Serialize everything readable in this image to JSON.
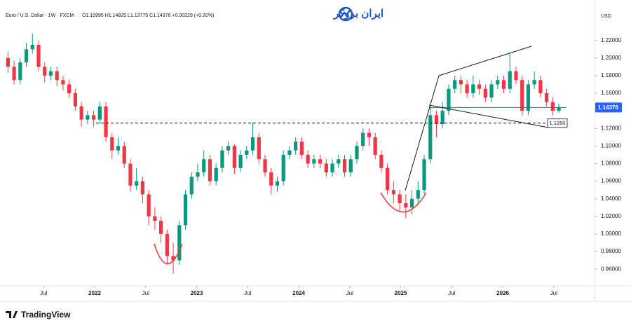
{
  "chart_data": {
    "type": "candlestick",
    "title": "Euro / U.S. Dollar · 1W · FXCM",
    "header_values": "O1.13995 H1.14825 L1.13775 C1.14376 +0.00229 (+0.20%)",
    "brand": "ایران بروکر",
    "currency": "USD",
    "source": "TradingView",
    "up_color": "#089981",
    "down_color": "#f23645",
    "grid": false,
    "x": [
      2021.15,
      2021.21,
      2021.27,
      2021.33,
      2021.39,
      2021.45,
      2021.51,
      2021.57,
      2021.63,
      2021.69,
      2021.75,
      2021.81,
      2021.87,
      2021.93,
      2021.99,
      2022.05,
      2022.11,
      2022.17,
      2022.23,
      2022.29,
      2022.35,
      2022.41,
      2022.47,
      2022.53,
      2022.59,
      2022.65,
      2022.71,
      2022.77,
      2022.83,
      2022.89,
      2022.95,
      2023.01,
      2023.07,
      2023.13,
      2023.19,
      2023.25,
      2023.31,
      2023.37,
      2023.43,
      2023.49,
      2023.55,
      2023.61,
      2023.67,
      2023.73,
      2023.79,
      2023.85,
      2023.91,
      2023.97,
      2024.03,
      2024.09,
      2024.15,
      2024.21,
      2024.27,
      2024.33,
      2024.39,
      2024.45,
      2024.51,
      2024.57,
      2024.63,
      2024.69,
      2024.75,
      2024.81,
      2024.87,
      2024.93,
      2024.99,
      2025.05,
      2025.11,
      2025.17,
      2025.23,
      2025.29,
      2025.35,
      2025.41,
      2025.47,
      2025.53,
      2025.59,
      2025.65,
      2025.71,
      2025.77,
      2025.83,
      2025.89,
      2025.95,
      2026.01,
      2026.07,
      2026.13,
      2026.19,
      2026.25,
      2026.31,
      2026.37,
      2026.43,
      2026.49,
      2026.55
    ],
    "open": [
      1.2,
      1.19,
      1.175,
      1.195,
      1.21,
      1.215,
      1.19,
      1.18,
      1.185,
      1.175,
      1.17,
      1.16,
      1.145,
      1.13,
      1.135,
      1.13,
      1.145,
      1.11,
      1.095,
      1.1,
      1.08,
      1.055,
      1.06,
      1.045,
      1.02,
      1.015,
      1.0,
      0.975,
      0.97,
      1.01,
      1.045,
      1.065,
      1.07,
      1.085,
      1.06,
      1.075,
      1.095,
      1.1,
      1.075,
      1.09,
      1.095,
      1.11,
      1.085,
      1.07,
      1.055,
      1.06,
      1.09,
      1.095,
      1.105,
      1.09,
      1.08,
      1.085,
      1.08,
      1.07,
      1.08,
      1.085,
      1.07,
      1.085,
      1.1,
      1.115,
      1.11,
      1.09,
      1.075,
      1.05,
      1.045,
      1.035,
      1.03,
      1.04,
      1.05,
      1.085,
      1.135,
      1.125,
      1.14,
      1.165,
      1.175,
      1.17,
      1.16,
      1.17,
      1.165,
      1.155,
      1.17,
      1.175,
      1.165,
      1.185,
      1.175,
      1.14,
      1.17,
      1.175,
      1.16,
      1.15,
      1.13995
    ],
    "high": [
      1.207,
      1.197,
      1.2,
      1.217,
      1.228,
      1.22,
      1.195,
      1.19,
      1.19,
      1.18,
      1.175,
      1.165,
      1.15,
      1.14,
      1.14,
      1.15,
      1.15,
      1.115,
      1.11,
      1.105,
      1.085,
      1.075,
      1.065,
      1.05,
      1.03,
      1.02,
      1.005,
      0.99,
      1.015,
      1.05,
      1.07,
      1.08,
      1.095,
      1.09,
      1.08,
      1.1,
      1.105,
      1.102,
      1.095,
      1.1,
      1.127,
      1.115,
      1.09,
      1.075,
      1.065,
      1.095,
      1.1,
      1.11,
      1.11,
      1.095,
      1.09,
      1.09,
      1.085,
      1.085,
      1.09,
      1.09,
      1.09,
      1.105,
      1.12,
      1.12,
      1.115,
      1.095,
      1.08,
      1.06,
      1.05,
      1.045,
      1.05,
      1.06,
      1.09,
      1.145,
      1.14,
      1.15,
      1.17,
      1.18,
      1.18,
      1.175,
      1.18,
      1.175,
      1.17,
      1.175,
      1.18,
      1.18,
      1.205,
      1.19,
      1.18,
      1.175,
      1.185,
      1.18,
      1.165,
      1.155,
      1.14825
    ],
    "low": [
      1.183,
      1.17,
      1.17,
      1.19,
      1.205,
      1.185,
      1.172,
      1.175,
      1.168,
      1.163,
      1.155,
      1.14,
      1.122,
      1.125,
      1.122,
      1.125,
      1.105,
      1.085,
      1.09,
      1.075,
      1.048,
      1.05,
      1.035,
      1.01,
      1.005,
      0.99,
      0.965,
      0.955,
      0.965,
      1.005,
      1.04,
      1.06,
      1.065,
      1.055,
      1.055,
      1.07,
      1.09,
      1.068,
      1.07,
      1.085,
      1.09,
      1.08,
      1.065,
      1.045,
      1.048,
      1.055,
      1.085,
      1.09,
      1.085,
      1.075,
      1.075,
      1.075,
      1.065,
      1.065,
      1.075,
      1.065,
      1.065,
      1.08,
      1.095,
      1.1,
      1.085,
      1.07,
      1.045,
      1.035,
      1.025,
      1.018,
      1.022,
      1.035,
      1.045,
      1.08,
      1.11,
      1.12,
      1.135,
      1.16,
      1.16,
      1.155,
      1.155,
      1.158,
      1.15,
      1.15,
      1.165,
      1.16,
      1.16,
      1.17,
      1.135,
      1.135,
      1.165,
      1.155,
      1.145,
      1.135,
      1.13775
    ],
    "close": [
      1.19,
      1.175,
      1.195,
      1.21,
      1.215,
      1.19,
      1.18,
      1.185,
      1.175,
      1.17,
      1.16,
      1.145,
      1.13,
      1.135,
      1.13,
      1.145,
      1.11,
      1.095,
      1.1,
      1.08,
      1.055,
      1.06,
      1.045,
      1.02,
      1.015,
      1.0,
      0.975,
      0.97,
      1.01,
      1.045,
      1.065,
      1.07,
      1.085,
      1.06,
      1.075,
      1.095,
      1.1,
      1.075,
      1.09,
      1.095,
      1.11,
      1.085,
      1.07,
      1.055,
      1.06,
      1.09,
      1.095,
      1.105,
      1.09,
      1.08,
      1.085,
      1.08,
      1.07,
      1.08,
      1.085,
      1.07,
      1.085,
      1.1,
      1.115,
      1.11,
      1.09,
      1.075,
      1.05,
      1.045,
      1.035,
      1.03,
      1.04,
      1.05,
      1.085,
      1.135,
      1.125,
      1.14,
      1.165,
      1.175,
      1.17,
      1.16,
      1.17,
      1.165,
      1.155,
      1.17,
      1.175,
      1.165,
      1.185,
      1.175,
      1.14,
      1.17,
      1.175,
      1.16,
      1.15,
      1.14,
      1.14376
    ],
    "xlim": [
      2021.12,
      2026.9
    ],
    "xticks": [
      {
        "value": 2021.5,
        "label": "Jul"
      },
      2022,
      {
        "value": 2022.5,
        "label": "Jul"
      },
      2023,
      {
        "value": 2023.5,
        "label": "Jul"
      },
      2024,
      {
        "value": 2024.5,
        "label": "Jul"
      },
      2025,
      {
        "value": 2025.5,
        "label": "Jul"
      },
      2026,
      {
        "value": 2026.5,
        "label": "Jul"
      }
    ],
    "ylim": [
      0.941,
      1.258
    ],
    "yticks": [
      {
        "value": 0.96,
        "label": "0.96000"
      },
      {
        "value": 0.98,
        "label": "0.98000"
      },
      {
        "value": 1.0,
        "label": "1.00000"
      },
      {
        "value": 1.02,
        "label": "1.02000"
      },
      {
        "value": 1.04,
        "label": "1.04000"
      },
      {
        "value": 1.06,
        "label": "1.06000"
      },
      {
        "value": 1.08,
        "label": "1.08000"
      },
      {
        "value": 1.1,
        "label": "1.10000"
      },
      {
        "value": 1.12,
        "label": "1.12000"
      },
      {
        "value": 1.14,
        "label": "1.14000"
      },
      {
        "value": 1.16,
        "label": "1.16000"
      },
      {
        "value": 1.18,
        "label": "1.18000"
      },
      {
        "value": 1.2,
        "label": "1.20000"
      },
      {
        "value": 1.22,
        "label": "1.22000"
      }
    ],
    "last_price": 1.14376,
    "level": {
      "value": 1.126,
      "label": "1.1260"
    }
  }
}
